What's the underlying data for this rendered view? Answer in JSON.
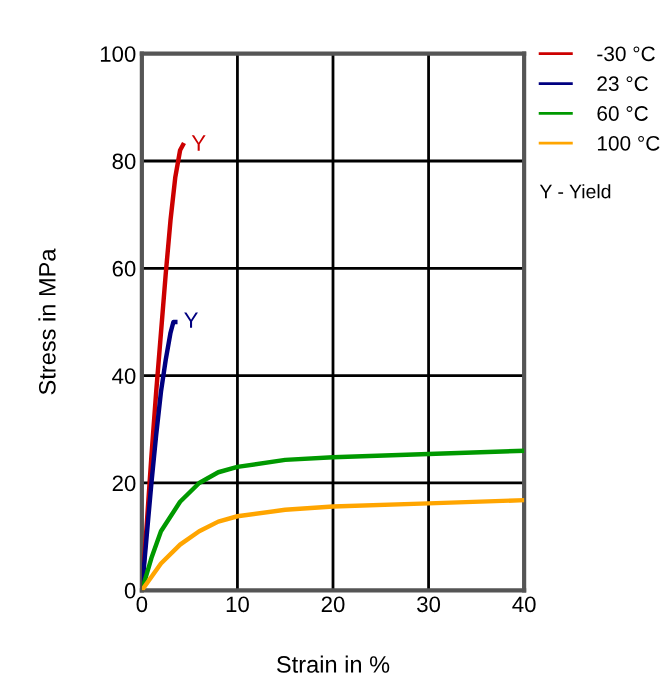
{
  "chart_data": {
    "type": "line",
    "xlabel": "Strain in %",
    "ylabel": "Stress in MPa",
    "xlim": [
      0,
      40
    ],
    "ylim": [
      0,
      100
    ],
    "xticks": [
      0,
      10,
      20,
      30,
      40
    ],
    "yticks": [
      0,
      20,
      40,
      60,
      80,
      100
    ],
    "grid": true,
    "legend": "right",
    "marker": "none",
    "line_style": "solid",
    "series": [
      {
        "name": "-30 °C",
        "color": "#cc0000",
        "x": [
          0,
          0.5,
          1,
          1.5,
          2,
          2.5,
          3,
          3.5,
          4,
          4.3
        ],
        "values": [
          0,
          12,
          25,
          37,
          48,
          59,
          69,
          77,
          82,
          83
        ]
      },
      {
        "name": "23 °C",
        "color": "#000080",
        "x": [
          0,
          0.5,
          1,
          1.5,
          2,
          2.5,
          3,
          3.3,
          3.5
        ],
        "values": [
          0,
          10,
          20,
          29,
          37,
          43,
          48,
          50,
          50
        ]
      },
      {
        "name": "60 °C",
        "color": "#009900",
        "x": [
          0,
          1,
          2,
          4,
          6,
          8,
          10,
          15,
          20,
          30,
          40
        ],
        "values": [
          0,
          6,
          11,
          16.5,
          20,
          22,
          23,
          24.3,
          24.8,
          25.4,
          26
        ]
      },
      {
        "name": "100 °C",
        "color": "#ffa500",
        "x": [
          0,
          2,
          4,
          6,
          8,
          10,
          15,
          20,
          30,
          40
        ],
        "values": [
          0,
          5,
          8.5,
          11,
          12.8,
          13.8,
          15,
          15.6,
          16.2,
          16.8
        ]
      }
    ],
    "annotations": [
      {
        "text": "Y",
        "x": 4.3,
        "y": 83
      },
      {
        "text": "Y",
        "x": 3.5,
        "y": 50
      },
      "Y - Yield"
    ]
  }
}
